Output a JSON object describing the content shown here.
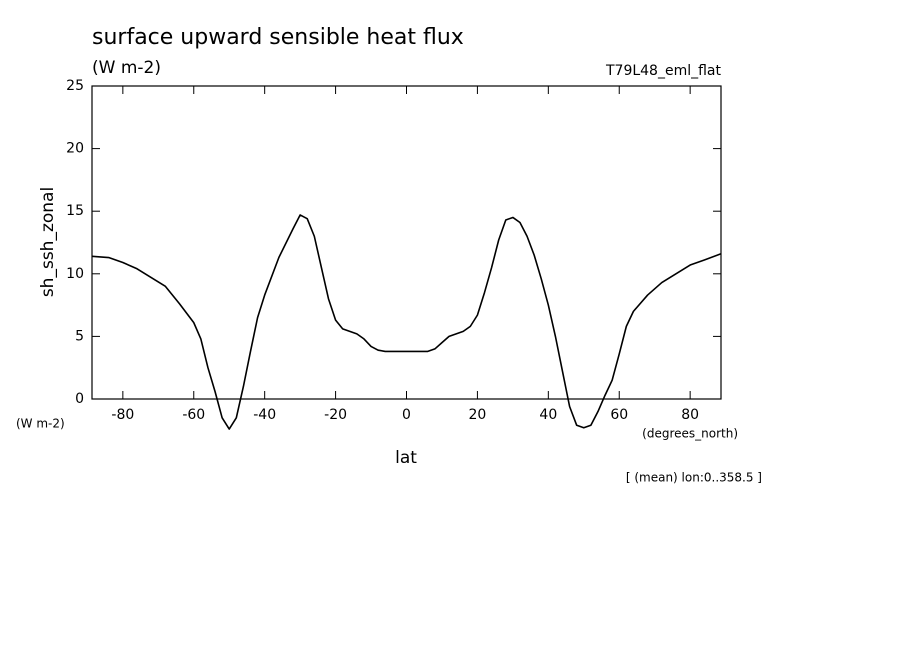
{
  "chart_data": {
    "type": "line",
    "title": "surface upward sensible heat flux",
    "subtitle": "(W m-2)",
    "run_label": "T79L48_eml_flat",
    "ylabel": "sh_ssh_zonal",
    "y_units": "(W m-2)",
    "xlabel": "lat",
    "x_units": "(degrees_north)",
    "note": "[ (mean) lon:0..358.5 ]",
    "color": "#000000",
    "xlim": [
      -88.7,
      88.7
    ],
    "ylim": [
      0,
      25
    ],
    "xticks": [
      -80,
      -60,
      -40,
      -20,
      0,
      20,
      40,
      60,
      80
    ],
    "yticks": [
      0,
      5,
      10,
      15,
      20,
      25
    ],
    "x": [
      -88.7,
      -84,
      -80,
      -76,
      -72,
      -68,
      -64,
      -60,
      -58,
      -56,
      -54,
      -52,
      -50,
      -48,
      -46,
      -44,
      -42,
      -40,
      -36,
      -32,
      -30,
      -28,
      -26,
      -24,
      -22,
      -20,
      -18,
      -16,
      -14,
      -12,
      -10,
      -8,
      -6,
      -4,
      -2,
      0,
      2,
      4,
      6,
      8,
      10,
      12,
      14,
      16,
      18,
      20,
      22,
      24,
      26,
      28,
      30,
      32,
      34,
      36,
      38,
      40,
      42,
      44,
      46,
      48,
      50,
      52,
      54,
      56,
      58,
      60,
      62,
      64,
      68,
      72,
      76,
      80,
      84,
      88.7
    ],
    "values": [
      11.4,
      11.3,
      10.9,
      10.4,
      9.7,
      9.0,
      7.6,
      6.1,
      4.8,
      2.5,
      0.6,
      -1.5,
      -2.4,
      -1.5,
      1.0,
      3.8,
      6.5,
      8.3,
      11.3,
      13.6,
      14.7,
      14.4,
      13.0,
      10.5,
      8.0,
      6.3,
      5.6,
      5.4,
      5.2,
      4.8,
      4.2,
      3.9,
      3.8,
      3.8,
      3.8,
      3.8,
      3.8,
      3.8,
      3.8,
      4.0,
      4.5,
      5.0,
      5.2,
      5.4,
      5.8,
      6.7,
      8.5,
      10.5,
      12.7,
      14.3,
      14.5,
      14.1,
      13.0,
      11.5,
      9.6,
      7.5,
      5.0,
      2.2,
      -0.6,
      -2.1,
      -2.3,
      -2.1,
      -1.0,
      0.3,
      1.5,
      3.6,
      5.8,
      7.0,
      8.3,
      9.3,
      10.0,
      10.7,
      11.1,
      11.6
    ]
  }
}
